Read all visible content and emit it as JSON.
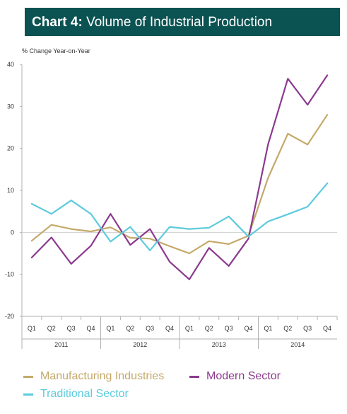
{
  "header": {
    "title_prefix": "Chart 4:",
    "title_main": "Volume of Industrial Production"
  },
  "chart_data": {
    "type": "line",
    "title": "Chart 4: Volume of Industrial Production",
    "ylabel": "% Change Year-on-Year",
    "xlabel": "",
    "ylim": [
      -20,
      40
    ],
    "yticks": [
      -20,
      -10,
      0,
      10,
      20,
      30,
      40
    ],
    "grid": false,
    "legend_position": "bottom",
    "categories": [
      "Q1",
      "Q2",
      "Q3",
      "Q4",
      "Q1",
      "Q2",
      "Q3",
      "Q4",
      "Q1",
      "Q2",
      "Q3",
      "Q4",
      "Q1",
      "Q2",
      "Q3",
      "Q4"
    ],
    "year_groups": [
      {
        "label": "2011",
        "quarters": 4
      },
      {
        "label": "2012",
        "quarters": 4
      },
      {
        "label": "2013",
        "quarters": 4
      },
      {
        "label": "2014",
        "quarters": 4
      }
    ],
    "series": [
      {
        "name": "Manufacturing Industries",
        "color": "#c4a96a",
        "values": [
          -2,
          1.8,
          0.8,
          0.2,
          1.2,
          -1.3,
          -1.5,
          -3.3,
          -5,
          -2.1,
          -2.8,
          -0.8,
          13,
          23.5,
          20.9,
          28
        ]
      },
      {
        "name": "Modern Sector",
        "color": "#8b3a8e",
        "values": [
          -6,
          -1.2,
          -7.5,
          -3.2,
          4.4,
          -3,
          0.8,
          -7,
          -11.2,
          -3.7,
          -8,
          -1.5,
          21,
          36.6,
          30.4,
          37.4
        ]
      },
      {
        "name": "Traditional Sector",
        "color": "#5ccbdc",
        "values": [
          6.8,
          4.4,
          7.6,
          4.4,
          -2.2,
          1.3,
          -4.3,
          1.3,
          0.8,
          1.1,
          3.8,
          -1,
          2.6,
          4.3,
          6.1,
          11.7
        ]
      }
    ]
  },
  "legend": {
    "items": [
      {
        "label": "Manufacturing Industries",
        "color": "#c4a96a"
      },
      {
        "label": "Modern Sector",
        "color": "#8b3a8e"
      },
      {
        "label": "Traditional Sector",
        "color": "#5ccbdc"
      }
    ]
  }
}
